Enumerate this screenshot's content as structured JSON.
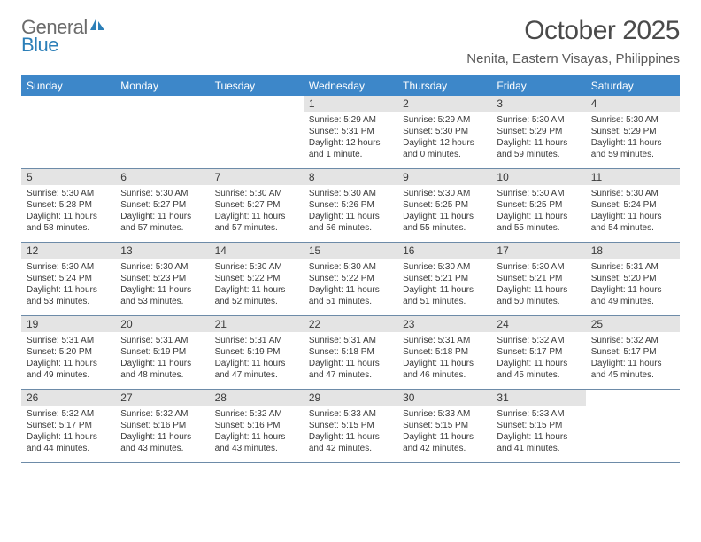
{
  "brand": {
    "text1": "General",
    "text2": "Blue"
  },
  "title": "October 2025",
  "location": "Nenita, Eastern Visayas, Philippines",
  "headers": [
    "Sunday",
    "Monday",
    "Tuesday",
    "Wednesday",
    "Thursday",
    "Friday",
    "Saturday"
  ],
  "colors": {
    "header_bg": "#3d87c9",
    "header_fg": "#ffffff",
    "daybar_bg": "#e4e4e4",
    "rule": "#6d8ba8",
    "brand_gray": "#6b6b6b",
    "brand_blue": "#2c7fb8"
  },
  "weeks": [
    [
      {
        "n": "",
        "sr": "",
        "ss": "",
        "dl": ""
      },
      {
        "n": "",
        "sr": "",
        "ss": "",
        "dl": ""
      },
      {
        "n": "",
        "sr": "",
        "ss": "",
        "dl": ""
      },
      {
        "n": "1",
        "sr": "Sunrise: 5:29 AM",
        "ss": "Sunset: 5:31 PM",
        "dl": "Daylight: 12 hours and 1 minute."
      },
      {
        "n": "2",
        "sr": "Sunrise: 5:29 AM",
        "ss": "Sunset: 5:30 PM",
        "dl": "Daylight: 12 hours and 0 minutes."
      },
      {
        "n": "3",
        "sr": "Sunrise: 5:30 AM",
        "ss": "Sunset: 5:29 PM",
        "dl": "Daylight: 11 hours and 59 minutes."
      },
      {
        "n": "4",
        "sr": "Sunrise: 5:30 AM",
        "ss": "Sunset: 5:29 PM",
        "dl": "Daylight: 11 hours and 59 minutes."
      }
    ],
    [
      {
        "n": "5",
        "sr": "Sunrise: 5:30 AM",
        "ss": "Sunset: 5:28 PM",
        "dl": "Daylight: 11 hours and 58 minutes."
      },
      {
        "n": "6",
        "sr": "Sunrise: 5:30 AM",
        "ss": "Sunset: 5:27 PM",
        "dl": "Daylight: 11 hours and 57 minutes."
      },
      {
        "n": "7",
        "sr": "Sunrise: 5:30 AM",
        "ss": "Sunset: 5:27 PM",
        "dl": "Daylight: 11 hours and 57 minutes."
      },
      {
        "n": "8",
        "sr": "Sunrise: 5:30 AM",
        "ss": "Sunset: 5:26 PM",
        "dl": "Daylight: 11 hours and 56 minutes."
      },
      {
        "n": "9",
        "sr": "Sunrise: 5:30 AM",
        "ss": "Sunset: 5:25 PM",
        "dl": "Daylight: 11 hours and 55 minutes."
      },
      {
        "n": "10",
        "sr": "Sunrise: 5:30 AM",
        "ss": "Sunset: 5:25 PM",
        "dl": "Daylight: 11 hours and 55 minutes."
      },
      {
        "n": "11",
        "sr": "Sunrise: 5:30 AM",
        "ss": "Sunset: 5:24 PM",
        "dl": "Daylight: 11 hours and 54 minutes."
      }
    ],
    [
      {
        "n": "12",
        "sr": "Sunrise: 5:30 AM",
        "ss": "Sunset: 5:24 PM",
        "dl": "Daylight: 11 hours and 53 minutes."
      },
      {
        "n": "13",
        "sr": "Sunrise: 5:30 AM",
        "ss": "Sunset: 5:23 PM",
        "dl": "Daylight: 11 hours and 53 minutes."
      },
      {
        "n": "14",
        "sr": "Sunrise: 5:30 AM",
        "ss": "Sunset: 5:22 PM",
        "dl": "Daylight: 11 hours and 52 minutes."
      },
      {
        "n": "15",
        "sr": "Sunrise: 5:30 AM",
        "ss": "Sunset: 5:22 PM",
        "dl": "Daylight: 11 hours and 51 minutes."
      },
      {
        "n": "16",
        "sr": "Sunrise: 5:30 AM",
        "ss": "Sunset: 5:21 PM",
        "dl": "Daylight: 11 hours and 51 minutes."
      },
      {
        "n": "17",
        "sr": "Sunrise: 5:30 AM",
        "ss": "Sunset: 5:21 PM",
        "dl": "Daylight: 11 hours and 50 minutes."
      },
      {
        "n": "18",
        "sr": "Sunrise: 5:31 AM",
        "ss": "Sunset: 5:20 PM",
        "dl": "Daylight: 11 hours and 49 minutes."
      }
    ],
    [
      {
        "n": "19",
        "sr": "Sunrise: 5:31 AM",
        "ss": "Sunset: 5:20 PM",
        "dl": "Daylight: 11 hours and 49 minutes."
      },
      {
        "n": "20",
        "sr": "Sunrise: 5:31 AM",
        "ss": "Sunset: 5:19 PM",
        "dl": "Daylight: 11 hours and 48 minutes."
      },
      {
        "n": "21",
        "sr": "Sunrise: 5:31 AM",
        "ss": "Sunset: 5:19 PM",
        "dl": "Daylight: 11 hours and 47 minutes."
      },
      {
        "n": "22",
        "sr": "Sunrise: 5:31 AM",
        "ss": "Sunset: 5:18 PM",
        "dl": "Daylight: 11 hours and 47 minutes."
      },
      {
        "n": "23",
        "sr": "Sunrise: 5:31 AM",
        "ss": "Sunset: 5:18 PM",
        "dl": "Daylight: 11 hours and 46 minutes."
      },
      {
        "n": "24",
        "sr": "Sunrise: 5:32 AM",
        "ss": "Sunset: 5:17 PM",
        "dl": "Daylight: 11 hours and 45 minutes."
      },
      {
        "n": "25",
        "sr": "Sunrise: 5:32 AM",
        "ss": "Sunset: 5:17 PM",
        "dl": "Daylight: 11 hours and 45 minutes."
      }
    ],
    [
      {
        "n": "26",
        "sr": "Sunrise: 5:32 AM",
        "ss": "Sunset: 5:17 PM",
        "dl": "Daylight: 11 hours and 44 minutes."
      },
      {
        "n": "27",
        "sr": "Sunrise: 5:32 AM",
        "ss": "Sunset: 5:16 PM",
        "dl": "Daylight: 11 hours and 43 minutes."
      },
      {
        "n": "28",
        "sr": "Sunrise: 5:32 AM",
        "ss": "Sunset: 5:16 PM",
        "dl": "Daylight: 11 hours and 43 minutes."
      },
      {
        "n": "29",
        "sr": "Sunrise: 5:33 AM",
        "ss": "Sunset: 5:15 PM",
        "dl": "Daylight: 11 hours and 42 minutes."
      },
      {
        "n": "30",
        "sr": "Sunrise: 5:33 AM",
        "ss": "Sunset: 5:15 PM",
        "dl": "Daylight: 11 hours and 42 minutes."
      },
      {
        "n": "31",
        "sr": "Sunrise: 5:33 AM",
        "ss": "Sunset: 5:15 PM",
        "dl": "Daylight: 11 hours and 41 minutes."
      },
      {
        "n": "",
        "sr": "",
        "ss": "",
        "dl": ""
      }
    ]
  ]
}
